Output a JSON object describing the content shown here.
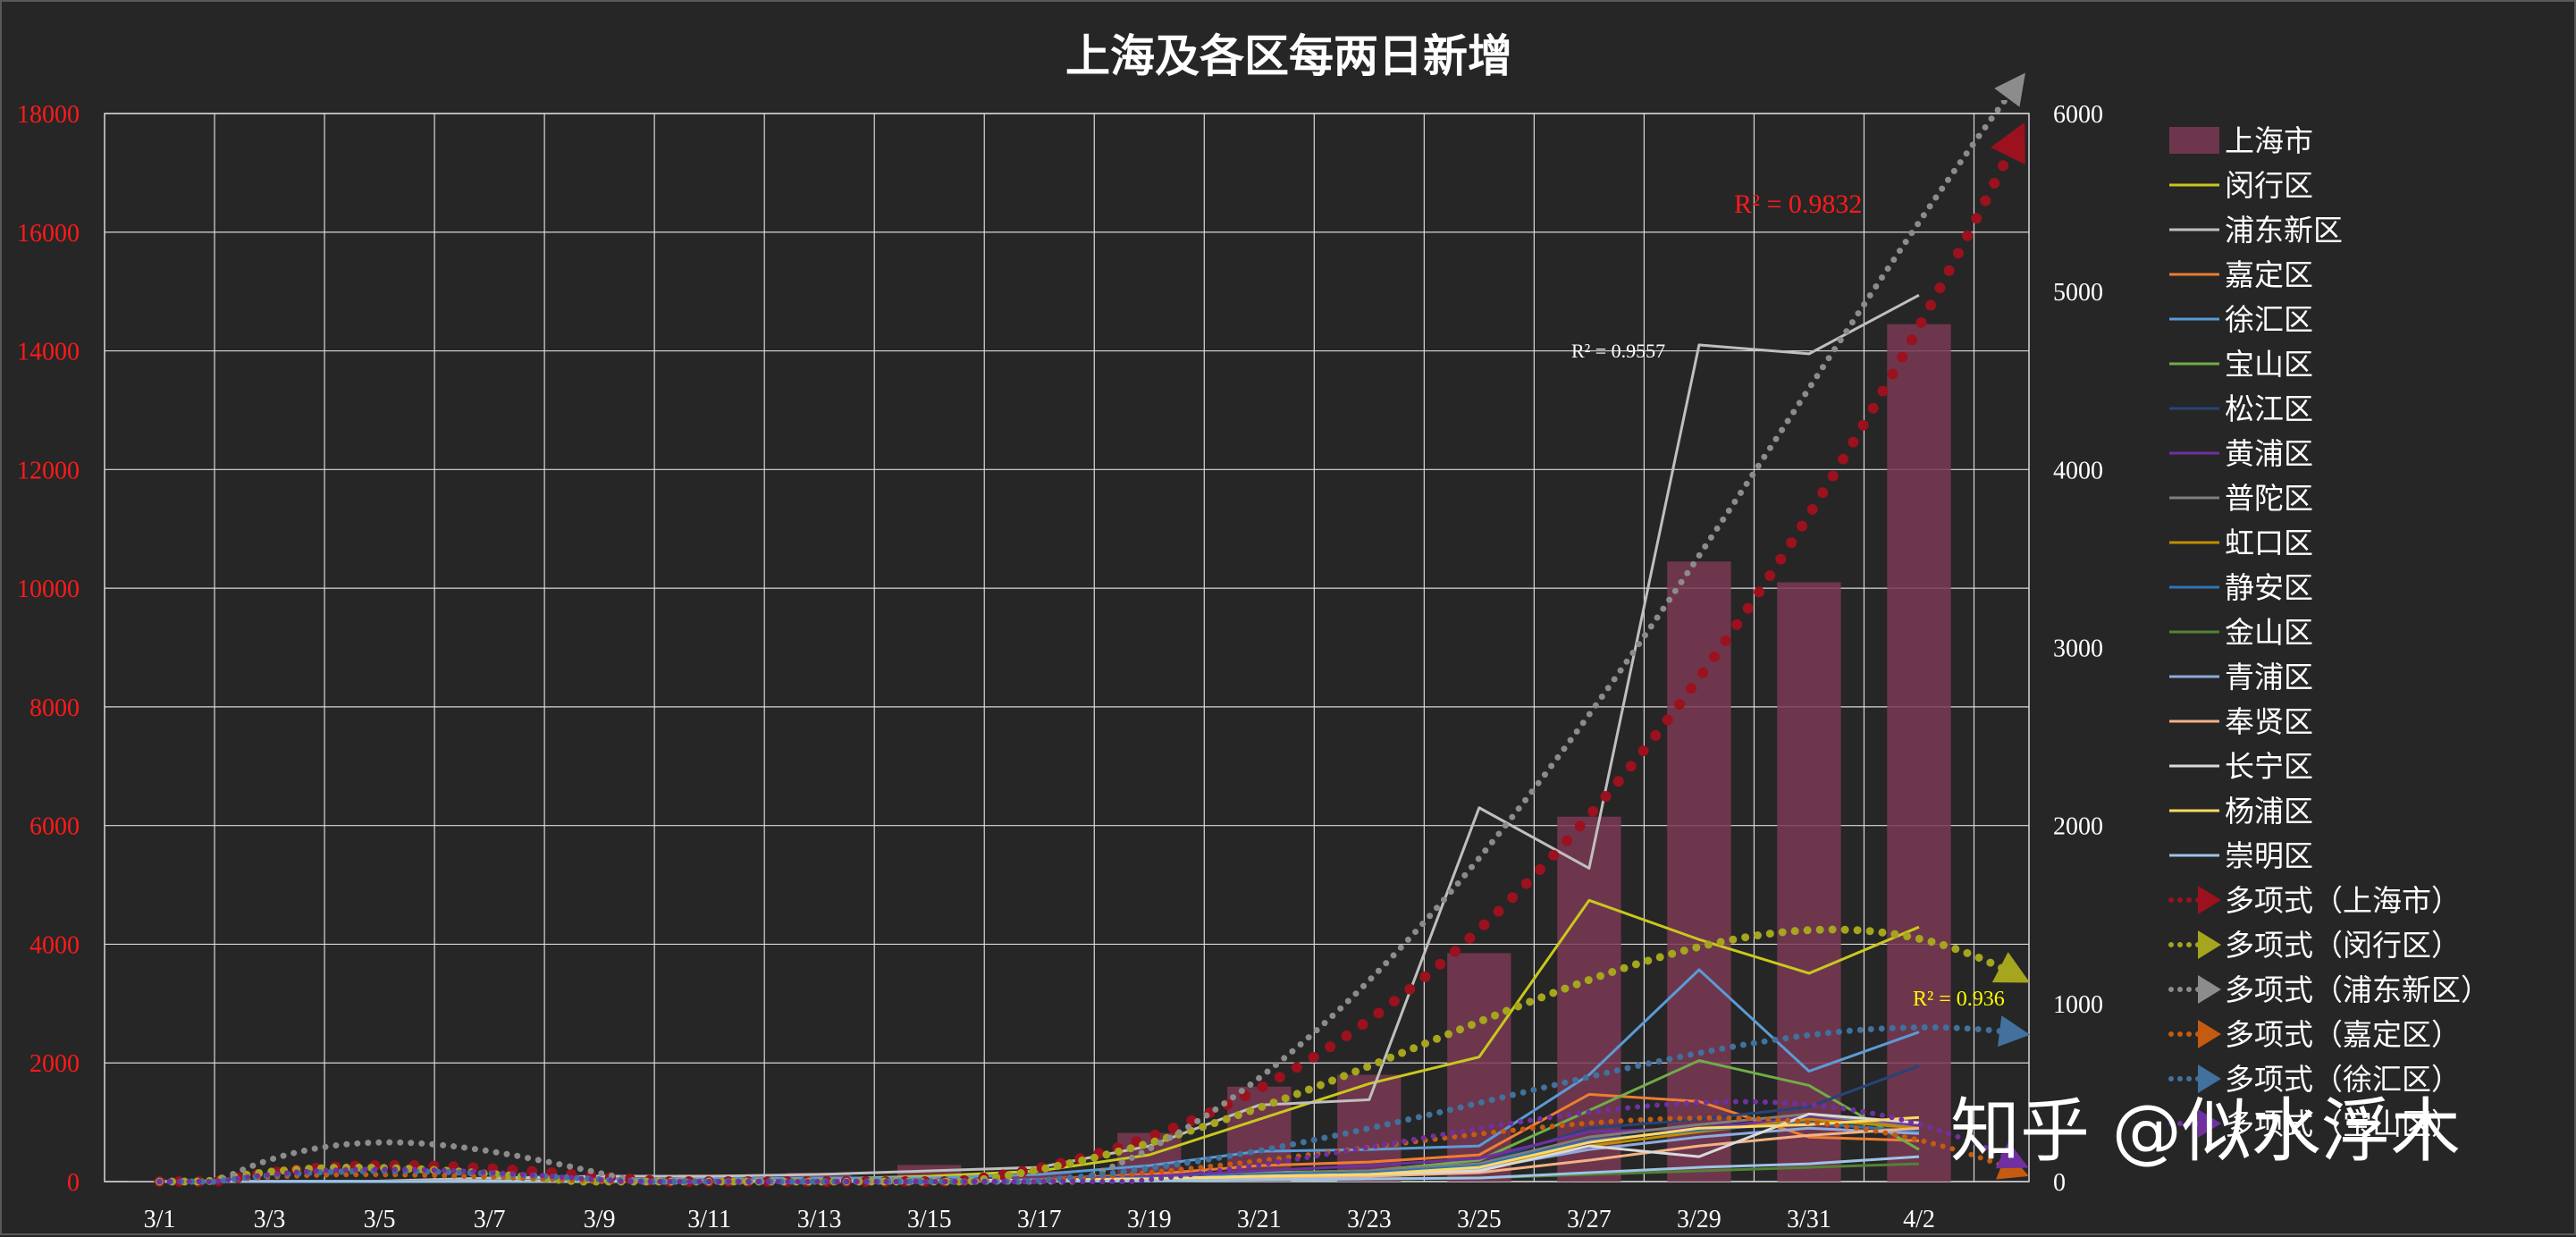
{
  "chart_data": {
    "type": "bar+line",
    "title": "上海及各区每两日新增",
    "categories": [
      "3/1",
      "3/3",
      "3/5",
      "3/7",
      "3/9",
      "3/11",
      "3/13",
      "3/15",
      "3/17",
      "3/19",
      "3/21",
      "3/23",
      "3/25",
      "3/27",
      "3/29",
      "3/31",
      "4/2"
    ],
    "y_left": {
      "min": 0,
      "max": 18000,
      "ticks": [
        0,
        2000,
        4000,
        6000,
        8000,
        10000,
        12000,
        14000,
        16000,
        18000
      ],
      "color": "#ff1a1a"
    },
    "y_right": {
      "min": 0,
      "max": 6000,
      "ticks": [
        0,
        1000,
        2000,
        3000,
        4000,
        5000,
        6000
      ],
      "color": "#ffffff"
    },
    "grid": true,
    "legend_position": "right",
    "bar_series": {
      "name": "上海市",
      "axis": "left",
      "color": "#7a3a55",
      "values": [
        2,
        5,
        5,
        50,
        80,
        120,
        150,
        280,
        180,
        820,
        1600,
        1800,
        3850,
        6150,
        10450,
        10100,
        14450
      ]
    },
    "line_series": [
      {
        "name": "闵行区",
        "color": "#c9c81e",
        "values": [
          0,
          0,
          2,
          10,
          12,
          10,
          15,
          30,
          60,
          150,
          350,
          550,
          700,
          1580,
          1360,
          1170,
          1430
        ]
      },
      {
        "name": "浦东新区",
        "color": "#bfbfbf",
        "values": [
          1,
          2,
          3,
          20,
          30,
          30,
          40,
          60,
          80,
          200,
          430,
          460,
          2100,
          1760,
          4700,
          4650,
          4980
        ]
      },
      {
        "name": "嘉定区",
        "color": "#ed7d31",
        "values": [
          0,
          0,
          0,
          3,
          5,
          5,
          5,
          10,
          15,
          40,
          90,
          110,
          150,
          490,
          450,
          250,
          230
        ]
      },
      {
        "name": "徐汇区",
        "color": "#5b9bd5",
        "values": [
          0,
          1,
          2,
          5,
          10,
          15,
          20,
          20,
          40,
          90,
          170,
          180,
          200,
          600,
          1190,
          620,
          840
        ]
      },
      {
        "name": "宝山区",
        "color": "#70ad47",
        "values": [
          0,
          0,
          0,
          2,
          3,
          3,
          5,
          5,
          10,
          20,
          50,
          60,
          120,
          400,
          680,
          540,
          180
        ]
      },
      {
        "name": "松江区",
        "color": "#264478",
        "values": [
          0,
          0,
          0,
          2,
          3,
          3,
          5,
          5,
          10,
          20,
          40,
          60,
          100,
          300,
          350,
          420,
          650
        ]
      },
      {
        "name": "黄浦区",
        "color": "#7030a0",
        "values": [
          0,
          0,
          0,
          3,
          5,
          5,
          5,
          10,
          15,
          30,
          60,
          90,
          130,
          280,
          300,
          360,
          320
        ]
      },
      {
        "name": "普陀区",
        "color": "#7f7f7f",
        "values": [
          0,
          0,
          0,
          2,
          3,
          3,
          5,
          5,
          10,
          20,
          40,
          60,
          100,
          250,
          320,
          380,
          300
        ]
      },
      {
        "name": "虹口区",
        "color": "#bf8f00",
        "values": [
          0,
          0,
          0,
          1,
          2,
          2,
          3,
          5,
          8,
          15,
          30,
          40,
          80,
          200,
          280,
          350,
          300
        ]
      },
      {
        "name": "静安区",
        "color": "#2e75b6",
        "values": [
          0,
          0,
          0,
          2,
          3,
          3,
          5,
          5,
          10,
          20,
          40,
          50,
          90,
          230,
          290,
          330,
          280
        ]
      },
      {
        "name": "金山区",
        "color": "#548235",
        "values": [
          0,
          0,
          0,
          0,
          1,
          1,
          1,
          2,
          3,
          5,
          10,
          15,
          20,
          40,
          60,
          80,
          100
        ]
      },
      {
        "name": "青浦区",
        "color": "#8faadc",
        "values": [
          0,
          0,
          0,
          1,
          2,
          2,
          3,
          5,
          8,
          15,
          30,
          40,
          70,
          180,
          250,
          300,
          270
        ]
      },
      {
        "name": "奉贤区",
        "color": "#f4b183",
        "values": [
          0,
          0,
          0,
          1,
          1,
          2,
          3,
          5,
          8,
          12,
          20,
          30,
          50,
          120,
          200,
          260,
          300
        ]
      },
      {
        "name": "长宁区",
        "color": "#d9d9d9",
        "values": [
          0,
          0,
          0,
          1,
          2,
          2,
          3,
          5,
          8,
          15,
          30,
          40,
          60,
          200,
          140,
          380,
          330
        ]
      },
      {
        "name": "杨浦区",
        "color": "#ffd966",
        "values": [
          0,
          0,
          0,
          1,
          2,
          2,
          3,
          5,
          8,
          15,
          30,
          40,
          80,
          220,
          300,
          320,
          360
        ]
      },
      {
        "name": "崇明区",
        "color": "#9dc3e6",
        "values": [
          0,
          0,
          0,
          0,
          0,
          1,
          1,
          1,
          2,
          5,
          10,
          15,
          20,
          50,
          80,
          100,
          140
        ]
      }
    ],
    "trend_lines": [
      {
        "name": "多项式（上海市）",
        "axis": "left",
        "color": "#9b111e",
        "r2_label": "R² = 0.9832",
        "r2_color": "#ff1a1a"
      },
      {
        "name": "多项式（闵行区）",
        "axis": "right",
        "color": "#a5a51e",
        "r2_label": "R² = 0.936",
        "r2_color": "#ffff00"
      },
      {
        "name": "多项式（浦东新区）",
        "axis": "right",
        "color": "#8c8c8c",
        "r2_label": "R² = 0.9557",
        "r2_color": "#ffffff"
      },
      {
        "name": "多项式（嘉定区）",
        "axis": "right",
        "color": "#c55a11",
        "r2_label": ""
      },
      {
        "name": "多项式（徐汇区）",
        "axis": "right",
        "color": "#41719c",
        "r2_label": ""
      },
      {
        "name": "多项式（宝山区）",
        "axis": "right",
        "color": "#7030a0",
        "r2_label": ""
      }
    ]
  },
  "watermark": "知乎 @似水浮木"
}
